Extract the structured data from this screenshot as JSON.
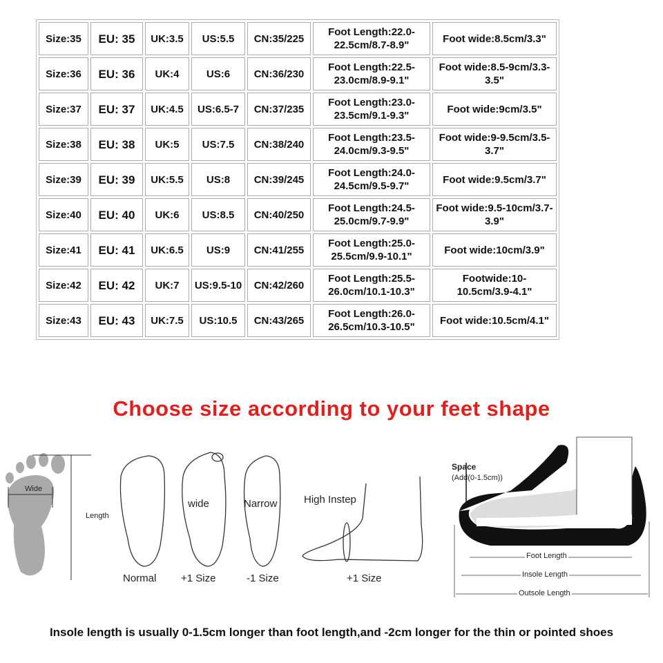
{
  "size_table": {
    "rows": [
      [
        "Size:35",
        "EU: 35",
        "UK:3.5",
        "US:5.5",
        "CN:35/225",
        "Foot Length:22.0-22.5cm/8.7-8.9\"",
        "Foot wide:8.5cm/3.3\""
      ],
      [
        "Size:36",
        "EU: 36",
        "UK:4",
        "US:6",
        "CN:36/230",
        "Foot Length:22.5-23.0cm/8.9-9.1\"",
        "Foot wide:8.5-9cm/3.3-3.5\""
      ],
      [
        "Size:37",
        "EU: 37",
        "UK:4.5",
        "US:6.5-7",
        "CN:37/235",
        "Foot Length:23.0-23.5cm/9.1-9.3\"",
        "Foot wide:9cm/3.5\""
      ],
      [
        "Size:38",
        "EU: 38",
        "UK:5",
        "US:7.5",
        "CN:38/240",
        "Foot Length:23.5-24.0cm/9.3-9.5\"",
        "Foot wide:9-9.5cm/3.5-3.7\""
      ],
      [
        "Size:39",
        "EU: 39",
        "UK:5.5",
        "US:8",
        "CN:39/245",
        "Foot Length:24.0-24.5cm/9.5-9.7\"",
        "Foot wide:9.5cm/3.7\""
      ],
      [
        "Size:40",
        "EU: 40",
        "UK:6",
        "US:8.5",
        "CN:40/250",
        "Foot Length:24.5-25.0cm/9.7-9.9\"",
        "Foot wide:9.5-10cm/3.7-3.9\""
      ],
      [
        "Size:41",
        "EU: 41",
        "UK:6.5",
        "US:9",
        "CN:41/255",
        "Foot Length:25.0-25.5cm/9.9-10.1\"",
        "Foot wide:10cm/3.9\""
      ],
      [
        "Size:42",
        "EU: 42",
        "UK:7",
        "US:9.5-10",
        "CN:42/260",
        "Foot Length:25.5-26.0cm/10.1-10.3\"",
        "Footwide:10-10.5cm/3.9-4.1\""
      ],
      [
        "Size:43",
        "EU: 43",
        "UK:7.5",
        "US:10.5",
        "CN:43/265",
        "Foot Length:26.0-26.5cm/10.3-10.5\"",
        "Foot wide:10.5cm/4.1\""
      ]
    ]
  },
  "headline": "Choose size according to your feet shape",
  "headline_color": "#e0201c",
  "diagram": {
    "wide": "Wide",
    "length": "Length",
    "wide_arrow": "wide",
    "narrow_arrow": "Narrow",
    "high_instep": "High Instep",
    "normal": "Normal",
    "wide_size": "+1 Size",
    "narrow_size": "-1 Size",
    "instep_size": "+1 Size",
    "space": "Space",
    "space_add": "(Add(0-1.5cm))",
    "foot_length": "Foot Length",
    "insole_length": "Insole Length",
    "outsole_length": "Outsole Length"
  },
  "footer_note": "Insole length is usually 0-1.5cm longer than foot length,and -2cm longer for the thin or pointed shoes"
}
